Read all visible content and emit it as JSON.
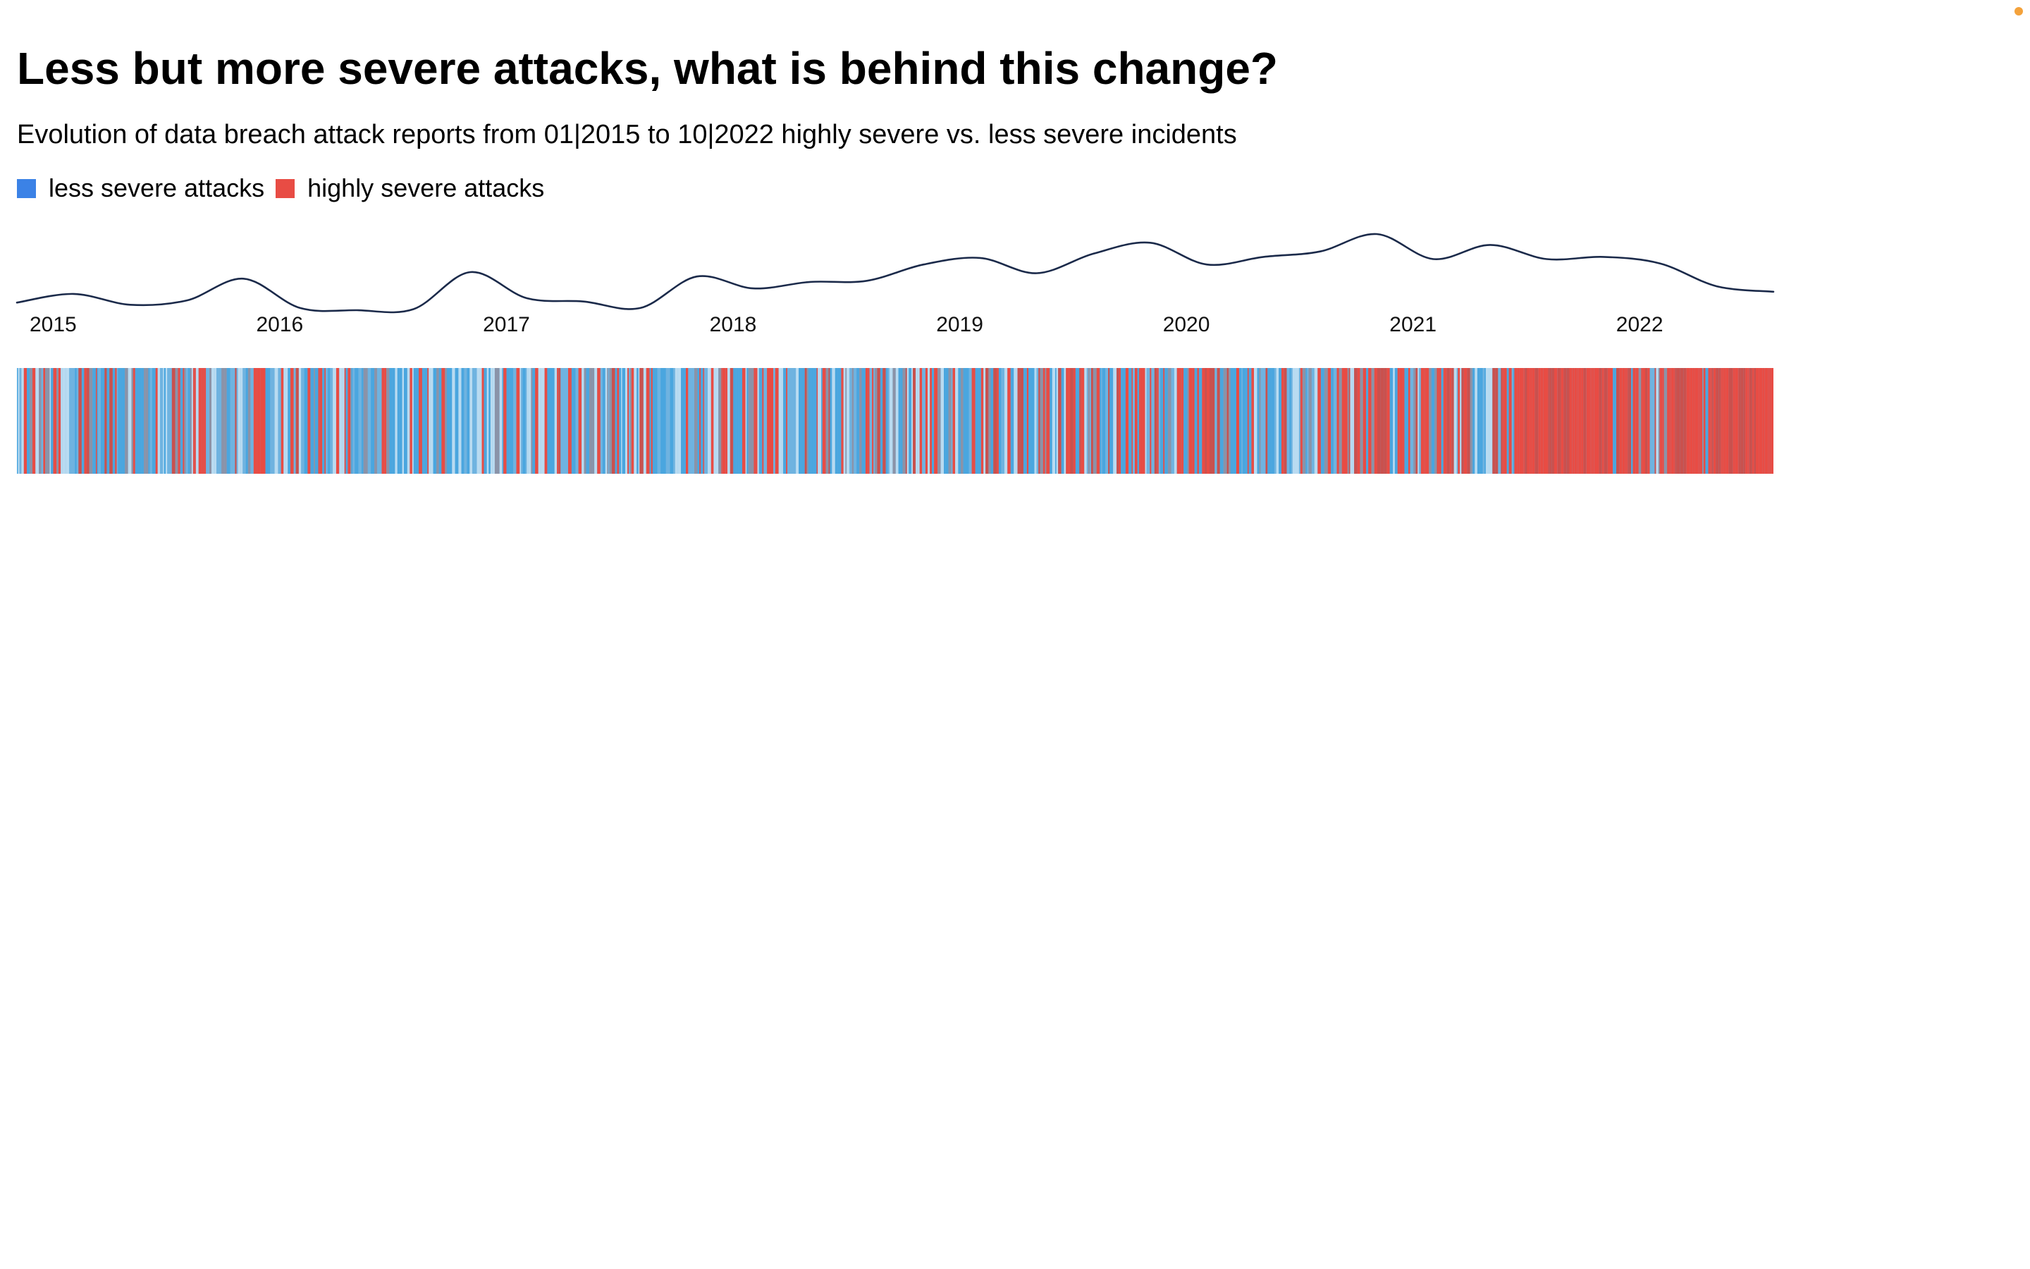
{
  "header": {
    "title": "Less but more severe attacks, what is behind this change?",
    "subtitle": "Evolution of data breach attack reports from 01|2015 to 10|2022 highly severe vs. less severe incidents"
  },
  "legend": {
    "items": [
      {
        "label": "less severe attacks",
        "color": "#3b82e6"
      },
      {
        "label": "highly severe attacks",
        "color": "#e84c44"
      }
    ]
  },
  "colors": {
    "line": "#1b2a4a",
    "red": "#e84c44",
    "redDark": "#c9514e",
    "blueBright": "#4aa6df",
    "blueMid": "#6fb3e0",
    "bluePale": "#b9dbf1",
    "grey": "#8b93a8"
  },
  "chart_data": {
    "type": "line",
    "title": "Less but more severe attacks, what is behind this change?",
    "subtitle": "Evolution of data breach attack reports from 01|2015 to 10|2022 highly severe vs. less severe incidents",
    "x_ticks": [
      "2015",
      "2016",
      "2017",
      "2018",
      "2019",
      "2020",
      "2021",
      "2022"
    ],
    "xlim": [
      "2015-01",
      "2022-10"
    ],
    "legend": [
      "less severe attacks",
      "highly severe attacks"
    ],
    "legend_position": "top-left",
    "grid": false,
    "series": [
      {
        "x": [
          "2015-01",
          "2015-04",
          "2015-07",
          "2015-10",
          "2016-01",
          "2016-04",
          "2016-07",
          "2016-10",
          "2017-01",
          "2017-04",
          "2017-07",
          "2017-10",
          "2018-01",
          "2018-04",
          "2018-07",
          "2018-10",
          "2019-01",
          "2019-04",
          "2019-07",
          "2019-10",
          "2020-01",
          "2020-04",
          "2020-07",
          "2020-10",
          "2021-01",
          "2021-04",
          "2021-07",
          "2021-10",
          "2022-01",
          "2022-04",
          "2022-07",
          "2022-10"
        ],
        "values": [
          25,
          33,
          23,
          27,
          47,
          20,
          18,
          19,
          53,
          29,
          26,
          20,
          49,
          38,
          44,
          45,
          60,
          66,
          52,
          70,
          80,
          60,
          67,
          72,
          88,
          65,
          78,
          65,
          67,
          61,
          40,
          35
        ],
        "smooth": true
      }
    ],
    "severity_stripes": {
      "description": "One vertical stripe per reported incident, colored by severity",
      "share_highly_severe_by_year": {
        "2015": 0.25,
        "2016": 0.22,
        "2017": 0.2,
        "2018": 0.28,
        "2019": 0.33,
        "2020": 0.36,
        "2021": 0.55,
        "2022": 0.78
      }
    }
  }
}
